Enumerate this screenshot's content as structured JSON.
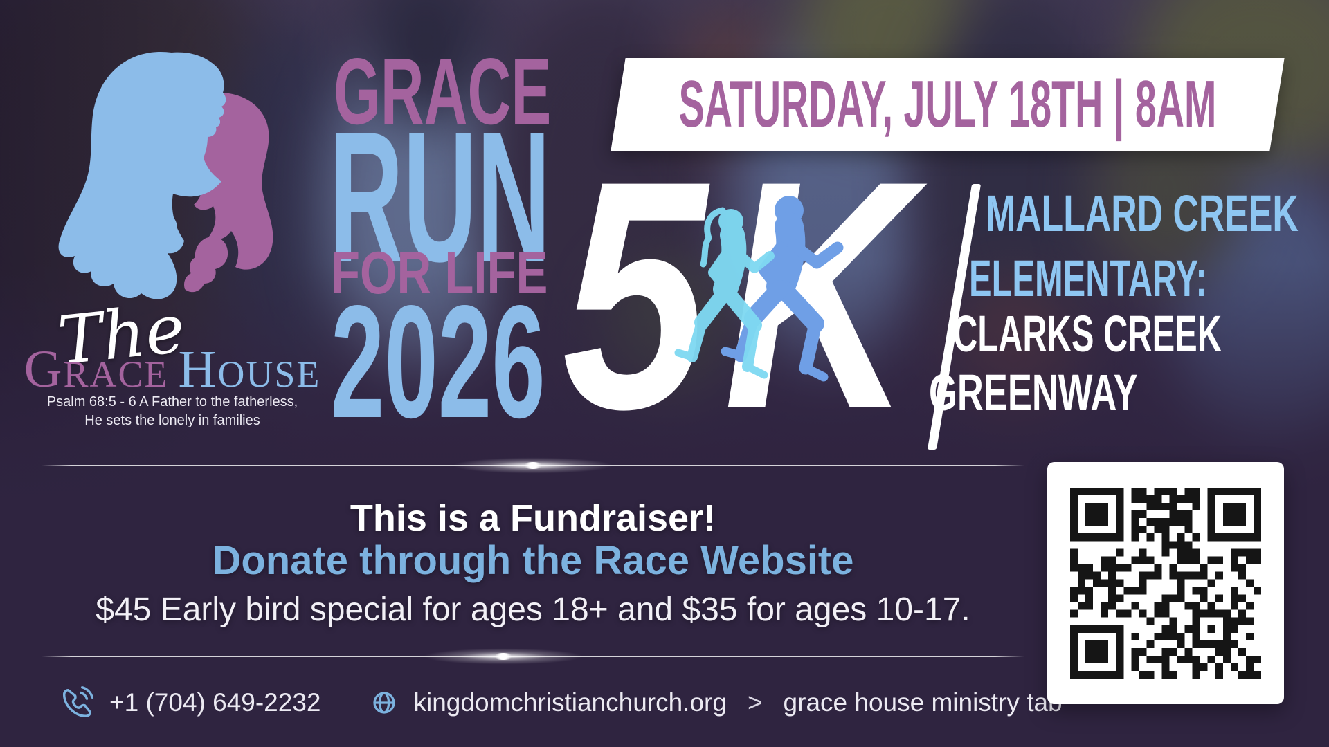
{
  "logo": {
    "prefix": "The",
    "name_word1": "GRACE",
    "name_word2": "HOUSE",
    "psalm_line1": "Psalm 68:5 - 6 A Father to the fatherless,",
    "psalm_line2": "He sets the lonely in families"
  },
  "title": {
    "line1": "GRACE",
    "line2": "RUN",
    "line3": "FOR LIFE",
    "line4": "2026"
  },
  "banner": {
    "date_time": "SATURDAY, JULY 18TH | 8AM"
  },
  "race": {
    "distance_5": "5",
    "distance_k": "K",
    "location_line1": "MALLARD CREEK",
    "location_line2": "ELEMENTARY:",
    "location_line3": "CLARKS CREEK",
    "location_line4": "GREENWAY"
  },
  "fundraiser": {
    "headline": "This is a Fundraiser!",
    "donate_line": "Donate through the Race Website",
    "pricing_line": "$45 Early bird special for ages 18+ and $35 for ages 10-17."
  },
  "contact": {
    "phone": "+1 (704) 649-2232",
    "website": "kingdomchristianchurch.org",
    "separator": ">",
    "ministry_note": "grace house ministry tab"
  },
  "icons": {
    "logo": "mother-child-logo-icon",
    "runners": "runners-silhouette-icon",
    "phone": "phone-icon",
    "globe": "globe-icon",
    "qr": "qr-code"
  },
  "colors": {
    "mauve": "#a4639e",
    "light_blue": "#8cbce9",
    "sky_blue": "#8ec6f2",
    "donate_blue": "#7cb2df",
    "cyan_runner": "#7fd9f2",
    "blue_runner": "#6f9fe6",
    "background": "#2f2440",
    "qr_dark": "#151515",
    "white": "#ffffff"
  }
}
